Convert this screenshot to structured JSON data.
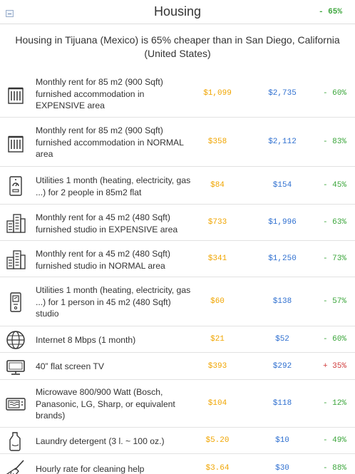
{
  "header": {
    "title": "Housing",
    "difference": "- 65%",
    "collapse_icon": "collapse-icon"
  },
  "summary": "Housing in Tijuana (Mexico) is 65% cheaper than in San Diego, California (United States)",
  "colors": {
    "local_price": "#f0a500",
    "remote_price": "#2e6fd0",
    "cheaper": "#3aa53a",
    "pricier": "#d03a3a"
  },
  "rows": [
    {
      "icon": "building-icon",
      "label": "Monthly rent for 85 m2 (900 Sqft) furnished accommodation in EXPENSIVE area",
      "local": "$1,099",
      "remote": "$2,735",
      "diff": "- 60%"
    },
    {
      "icon": "building-icon",
      "label": "Monthly rent for 85 m2 (900 Sqft) furnished accommodation in NORMAL area",
      "local": "$358",
      "remote": "$2,112",
      "diff": "- 83%"
    },
    {
      "icon": "utility-meter-icon",
      "label": "Utilities 1 month (heating, electricity, gas ...) for 2 people in 85m2 flat",
      "local": "$84",
      "remote": "$154",
      "diff": "- 45%"
    },
    {
      "icon": "city-buildings-icon",
      "label": "Monthly rent for a 45 m2 (480 Sqft) furnished studio in EXPENSIVE area",
      "local": "$733",
      "remote": "$1,996",
      "diff": "- 63%"
    },
    {
      "icon": "city-buildings-icon",
      "label": "Monthly rent for a 45 m2 (480 Sqft) furnished studio in NORMAL area",
      "local": "$341",
      "remote": "$1,250",
      "diff": "- 73%"
    },
    {
      "icon": "thermostat-icon",
      "label": "Utilities 1 month (heating, electricity, gas ...) for 1 person in 45 m2 (480 Sqft) studio",
      "local": "$60",
      "remote": "$138",
      "diff": "- 57%"
    },
    {
      "icon": "globe-icon",
      "label": "Internet 8 Mbps (1 month)",
      "local": "$21",
      "remote": "$52",
      "diff": "- 60%"
    },
    {
      "icon": "tv-icon",
      "label": "40” flat screen TV",
      "local": "$393",
      "remote": "$292",
      "diff": "+ 35%"
    },
    {
      "icon": "microwave-icon",
      "label": "Microwave 800/900 Watt (Bosch, Panasonic, LG, Sharp, or equivalent brands)",
      "local": "$104",
      "remote": "$118",
      "diff": "- 12%"
    },
    {
      "icon": "detergent-bottle-icon",
      "label": "Laundry detergent (3 l. ~ 100 oz.)",
      "local": "$5.20",
      "remote": "$10",
      "diff": "- 49%"
    },
    {
      "icon": "broom-icon",
      "label": "Hourly rate for cleaning help",
      "local": "$3.64",
      "remote": "$30",
      "diff": "- 88%"
    }
  ]
}
